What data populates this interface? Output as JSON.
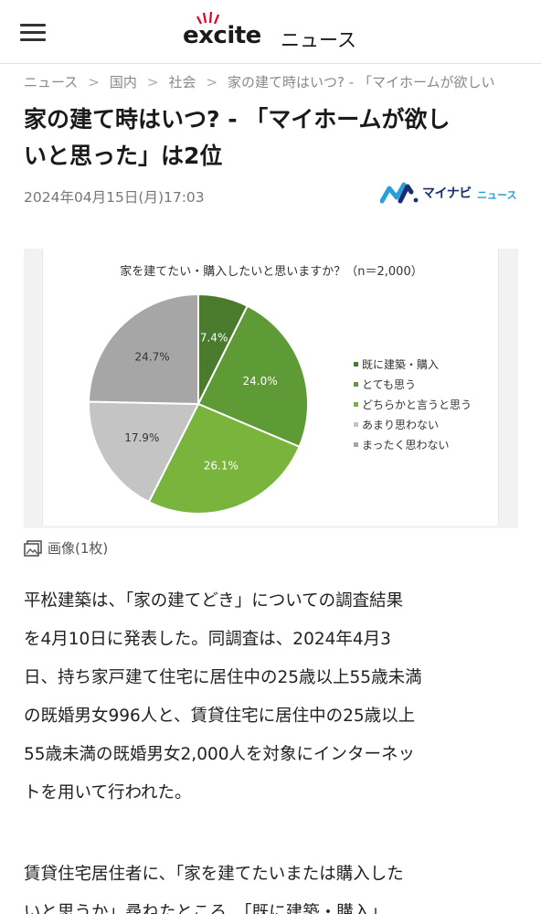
{
  "header": {
    "logo_brand": "excite",
    "logo_section": "ニュース"
  },
  "breadcrumb": [
    "ニュース",
    "国内",
    "社会",
    "家の建て時はいつ? - 「マイホームが欲しい"
  ],
  "article": {
    "title_line1": "家の建て時はいつ? - 「マイホームが欲し",
    "title_line2": "いと思った」は2位",
    "date": "2024年04月15日(月)17:03",
    "source_name": "マイナビ",
    "source_sub": "ニュース",
    "image_caption": "画像(1枚)",
    "paragraph1": [
      "平松建築は、「家の建てどき」についての調査結果",
      "を4月10日に発表した。同調査は、2024年4月3",
      "日、持ち家戸建て住宅に居住中の25歳以上55歳未満",
      "の既婚男女996人と、賃貸住宅に居住中の25歳以上",
      "55歳未満の既婚男女2,000人を対象にインターネッ",
      "トを用いて行われた。"
    ],
    "paragraph2": [
      "賃貸住宅居住者に、「家を建てたいまたは購入した",
      "いと思うか」尋ねたところ、「既に建築・購入」"
    ]
  },
  "colors": {
    "brand_red": "#e8001c",
    "mynavi_navy": "#1d2d6e",
    "mynavi_blue": "#2b9fd9"
  },
  "chart_data": {
    "type": "pie",
    "title": "家を建てたい・購入したいと思いますか？（n＝2,000）",
    "categories": [
      "既に建築・購入",
      "とても思う",
      "どちらかと言うと思う",
      "あまり思わない",
      "まったく思わない"
    ],
    "values": [
      7.4,
      24.0,
      26.1,
      17.9,
      24.7
    ],
    "labels": [
      "7.4%",
      "24.0%",
      "26.1%",
      "17.9%",
      "24.7%"
    ],
    "colors": [
      "#4a7a2c",
      "#5e9a35",
      "#79b43d",
      "#c4c4c4",
      "#a6a6a6"
    ],
    "legend_position": "right"
  }
}
